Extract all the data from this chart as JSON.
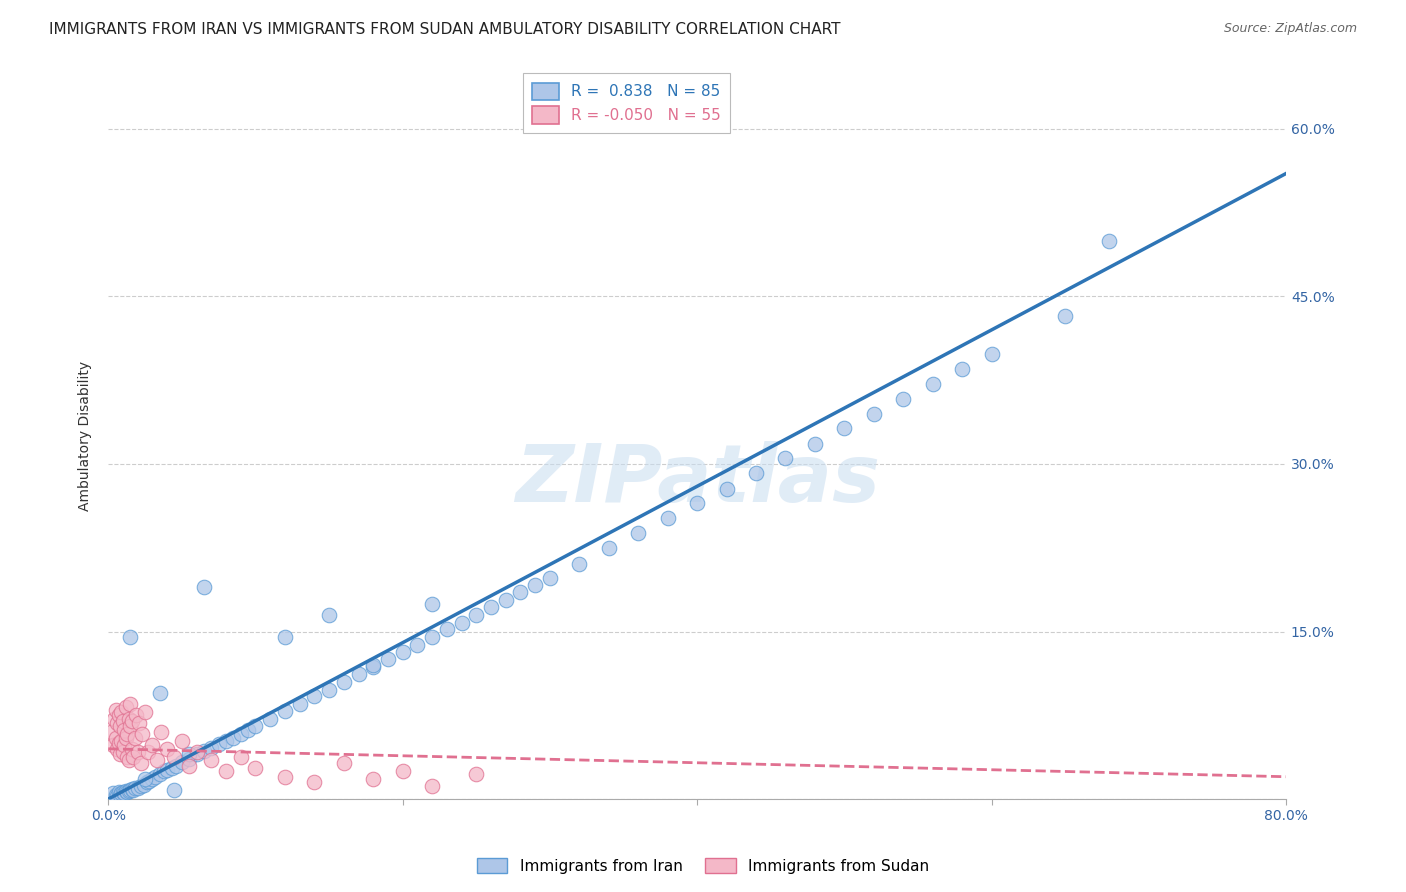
{
  "title": "IMMIGRANTS FROM IRAN VS IMMIGRANTS FROM SUDAN AMBULATORY DISABILITY CORRELATION CHART",
  "source": "Source: ZipAtlas.com",
  "ylabel": "Ambulatory Disability",
  "xlim": [
    0.0,
    0.8
  ],
  "ylim": [
    0.0,
    0.65
  ],
  "x_tick_positions": [
    0.0,
    0.2,
    0.4,
    0.6,
    0.8
  ],
  "x_tick_labels": [
    "0.0%",
    "",
    "",
    "",
    "80.0%"
  ],
  "y_tick_positions": [
    0.0,
    0.15,
    0.3,
    0.45,
    0.6
  ],
  "y_tick_labels": [
    "",
    "15.0%",
    "30.0%",
    "45.0%",
    "60.0%"
  ],
  "iran_color": "#aec6e8",
  "iran_edge_color": "#5b9bd5",
  "sudan_color": "#f4b8c8",
  "sudan_edge_color": "#e07090",
  "iran_line_color": "#2e75b6",
  "sudan_line_color": "#e07090",
  "iran_R": 0.838,
  "iran_N": 85,
  "sudan_R": -0.05,
  "sudan_N": 55,
  "iran_line_x": [
    0.0,
    0.8
  ],
  "iran_line_y": [
    0.0,
    0.56
  ],
  "sudan_line_x": [
    0.0,
    0.8
  ],
  "sudan_line_y": [
    0.045,
    0.02
  ],
  "watermark": "ZIPatlas",
  "background_color": "#ffffff",
  "grid_color": "#c8c8c8",
  "title_fontsize": 11,
  "axis_label_fontsize": 10,
  "tick_fontsize": 10,
  "legend_fontsize": 11,
  "iran_scatter_x": [
    0.003,
    0.005,
    0.006,
    0.007,
    0.008,
    0.009,
    0.01,
    0.011,
    0.012,
    0.013,
    0.014,
    0.015,
    0.016,
    0.017,
    0.018,
    0.02,
    0.022,
    0.024,
    0.026,
    0.028,
    0.03,
    0.032,
    0.035,
    0.038,
    0.04,
    0.043,
    0.046,
    0.05,
    0.055,
    0.06,
    0.065,
    0.07,
    0.075,
    0.08,
    0.085,
    0.09,
    0.095,
    0.1,
    0.11,
    0.12,
    0.13,
    0.14,
    0.15,
    0.16,
    0.17,
    0.18,
    0.19,
    0.2,
    0.21,
    0.22,
    0.23,
    0.24,
    0.25,
    0.26,
    0.27,
    0.28,
    0.29,
    0.3,
    0.32,
    0.34,
    0.36,
    0.38,
    0.4,
    0.42,
    0.44,
    0.46,
    0.48,
    0.5,
    0.52,
    0.54,
    0.56,
    0.58,
    0.6,
    0.65,
    0.68,
    0.015,
    0.025,
    0.035,
    0.045,
    0.055,
    0.065,
    0.12,
    0.15,
    0.18,
    0.22
  ],
  "iran_scatter_y": [
    0.005,
    0.004,
    0.003,
    0.006,
    0.004,
    0.005,
    0.006,
    0.005,
    0.007,
    0.006,
    0.007,
    0.008,
    0.009,
    0.008,
    0.01,
    0.01,
    0.012,
    0.013,
    0.015,
    0.016,
    0.018,
    0.02,
    0.022,
    0.025,
    0.026,
    0.028,
    0.03,
    0.033,
    0.036,
    0.04,
    0.043,
    0.046,
    0.049,
    0.052,
    0.055,
    0.058,
    0.062,
    0.065,
    0.072,
    0.079,
    0.085,
    0.092,
    0.098,
    0.105,
    0.112,
    0.118,
    0.125,
    0.132,
    0.138,
    0.145,
    0.152,
    0.158,
    0.165,
    0.172,
    0.178,
    0.185,
    0.192,
    0.198,
    0.21,
    0.225,
    0.238,
    0.252,
    0.265,
    0.278,
    0.292,
    0.305,
    0.318,
    0.332,
    0.345,
    0.358,
    0.372,
    0.385,
    0.398,
    0.432,
    0.5,
    0.145,
    0.018,
    0.095,
    0.008,
    0.04,
    0.19,
    0.145,
    0.165,
    0.12,
    0.175
  ],
  "sudan_scatter_x": [
    0.002,
    0.003,
    0.004,
    0.005,
    0.005,
    0.006,
    0.006,
    0.007,
    0.007,
    0.008,
    0.008,
    0.009,
    0.009,
    0.01,
    0.01,
    0.011,
    0.011,
    0.012,
    0.012,
    0.013,
    0.013,
    0.014,
    0.014,
    0.015,
    0.015,
    0.016,
    0.016,
    0.017,
    0.018,
    0.019,
    0.02,
    0.021,
    0.022,
    0.023,
    0.025,
    0.027,
    0.03,
    0.033,
    0.036,
    0.04,
    0.045,
    0.05,
    0.055,
    0.06,
    0.07,
    0.08,
    0.09,
    0.1,
    0.12,
    0.14,
    0.16,
    0.18,
    0.2,
    0.22,
    0.25
  ],
  "sudan_scatter_y": [
    0.06,
    0.048,
    0.072,
    0.055,
    0.08,
    0.045,
    0.068,
    0.05,
    0.075,
    0.04,
    0.065,
    0.052,
    0.078,
    0.042,
    0.07,
    0.048,
    0.062,
    0.055,
    0.082,
    0.038,
    0.058,
    0.072,
    0.035,
    0.065,
    0.085,
    0.045,
    0.07,
    0.038,
    0.055,
    0.075,
    0.042,
    0.068,
    0.032,
    0.058,
    0.078,
    0.042,
    0.048,
    0.035,
    0.06,
    0.045,
    0.038,
    0.052,
    0.03,
    0.042,
    0.035,
    0.025,
    0.038,
    0.028,
    0.02,
    0.015,
    0.032,
    0.018,
    0.025,
    0.012,
    0.022
  ]
}
